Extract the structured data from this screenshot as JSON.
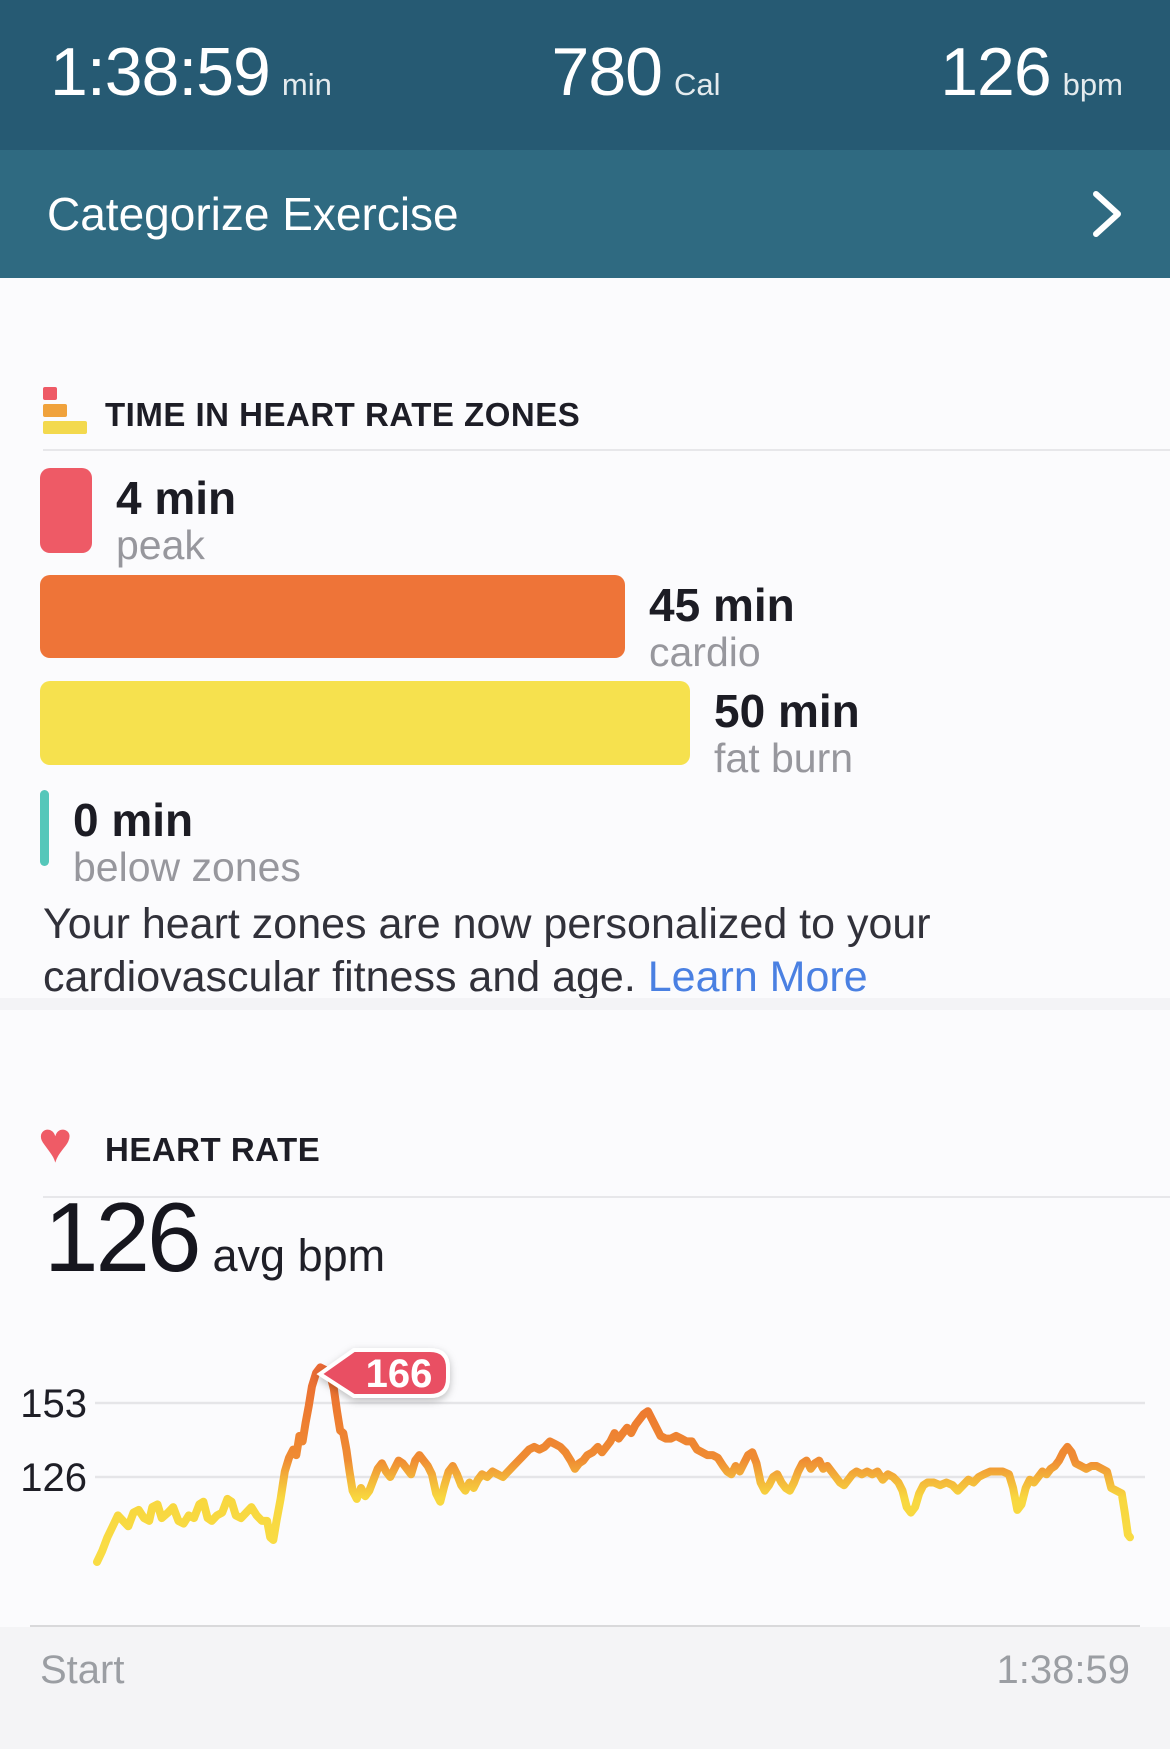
{
  "topbar": {
    "duration": "1:38:59",
    "duration_unit": "min",
    "calories": "780",
    "calories_unit": "Cal",
    "heart_rate": "126",
    "heart_rate_unit": "bpm"
  },
  "categorize": {
    "label": "Categorize Exercise"
  },
  "zones": {
    "title": "TIME IN HEART RATE ZONES",
    "rows": [
      {
        "value": "4 min",
        "label": "peak",
        "minutes": 4,
        "color": "#EE5A66"
      },
      {
        "value": "45 min",
        "label": "cardio",
        "minutes": 45,
        "color": "#EE7438"
      },
      {
        "value": "50 min",
        "label": "fat burn",
        "minutes": 50,
        "color": "#F6E14E"
      },
      {
        "value": "0 min",
        "label": "below zones",
        "minutes": 0,
        "color": "#55C7BA"
      }
    ],
    "note": "Your heart zones are now personalized to your cardiovascular fitness and age.",
    "link_label": "Learn More"
  },
  "heart_rate_section": {
    "title": "HEART RATE",
    "avg_value": "126",
    "avg_unit": "avg bpm"
  },
  "chart_data": {
    "type": "line",
    "ylabel": "bpm",
    "yticks": [
      "153",
      "126"
    ],
    "ylim": [
      90,
      170
    ],
    "duration_min": 99,
    "grid": true,
    "callout": {
      "value": "166",
      "t_min": 21.4
    },
    "colors": {
      "above_126": "#ED7C32",
      "below_126": "#F8D940",
      "callout": "#E94F63"
    },
    "x_axis_labels": [
      "Start",
      "1:38:59"
    ],
    "series": [
      {
        "name": "heart_rate_bpm",
        "points": [
          [
            0,
            95
          ],
          [
            0.5,
            99
          ],
          [
            1,
            104
          ],
          [
            1.5,
            108
          ],
          [
            2,
            112
          ],
          [
            2.5,
            110
          ],
          [
            3,
            108
          ],
          [
            3.5,
            113
          ],
          [
            4,
            114
          ],
          [
            4.5,
            111
          ],
          [
            5,
            110
          ],
          [
            5.3,
            115
          ],
          [
            5.8,
            116
          ],
          [
            6.2,
            111
          ],
          [
            6.8,
            113
          ],
          [
            7.3,
            115
          ],
          [
            7.8,
            110
          ],
          [
            8.3,
            109
          ],
          [
            8.8,
            112
          ],
          [
            9.3,
            111
          ],
          [
            9.8,
            116
          ],
          [
            10.2,
            117
          ],
          [
            10.6,
            111
          ],
          [
            11,
            110
          ],
          [
            11.5,
            112
          ],
          [
            12,
            113
          ],
          [
            12.5,
            118
          ],
          [
            12.9,
            117
          ],
          [
            13.3,
            112
          ],
          [
            13.8,
            111
          ],
          [
            14.3,
            113
          ],
          [
            14.8,
            115
          ],
          [
            15.3,
            112
          ],
          [
            15.8,
            110
          ],
          [
            16.3,
            110
          ],
          [
            16.6,
            104
          ],
          [
            16.9,
            103
          ],
          [
            17.2,
            110
          ],
          [
            17.6,
            118
          ],
          [
            18,
            128
          ],
          [
            18.4,
            133
          ],
          [
            18.8,
            136
          ],
          [
            19.1,
            134
          ],
          [
            19.4,
            141
          ],
          [
            19.7,
            139
          ],
          [
            20,
            146
          ],
          [
            20.3,
            152
          ],
          [
            20.6,
            159
          ],
          [
            21,
            164
          ],
          [
            21.4,
            166
          ],
          [
            21.9,
            165
          ],
          [
            22.3,
            164
          ],
          [
            22.7,
            158
          ],
          [
            23,
            150
          ],
          [
            23.3,
            143
          ],
          [
            23.6,
            142
          ],
          [
            23.9,
            136
          ],
          [
            24.2,
            128
          ],
          [
            24.5,
            121
          ],
          [
            24.9,
            118
          ],
          [
            25.3,
            122
          ],
          [
            25.7,
            119
          ],
          [
            26.1,
            121
          ],
          [
            26.5,
            125
          ],
          [
            26.9,
            129
          ],
          [
            27.3,
            131
          ],
          [
            27.7,
            128
          ],
          [
            28.1,
            126
          ],
          [
            28.5,
            129
          ],
          [
            28.9,
            132
          ],
          [
            29.3,
            131
          ],
          [
            29.7,
            129
          ],
          [
            30.1,
            127
          ],
          [
            30.5,
            132
          ],
          [
            30.9,
            134
          ],
          [
            31.3,
            132
          ],
          [
            31.7,
            130
          ],
          [
            32.1,
            127
          ],
          [
            32.5,
            120
          ],
          [
            32.9,
            117
          ],
          [
            33.3,
            123
          ],
          [
            33.7,
            128
          ],
          [
            34.1,
            130
          ],
          [
            34.5,
            127
          ],
          [
            34.9,
            123
          ],
          [
            35.3,
            121
          ],
          [
            35.7,
            124
          ],
          [
            36.1,
            122
          ],
          [
            36.5,
            125
          ],
          [
            36.9,
            127
          ],
          [
            37.4,
            126
          ],
          [
            37.9,
            128
          ],
          [
            38.4,
            127
          ],
          [
            38.9,
            126
          ],
          [
            39.4,
            128
          ],
          [
            39.9,
            130
          ],
          [
            40.4,
            132
          ],
          [
            40.9,
            134
          ],
          [
            41.4,
            136
          ],
          [
            41.9,
            137
          ],
          [
            42.4,
            136
          ],
          [
            42.9,
            137
          ],
          [
            43.4,
            139
          ],
          [
            43.9,
            138
          ],
          [
            44.4,
            137
          ],
          [
            44.9,
            135
          ],
          [
            45.4,
            132
          ],
          [
            45.8,
            129
          ],
          [
            46.2,
            131
          ],
          [
            46.6,
            132
          ],
          [
            47,
            134
          ],
          [
            47.5,
            135
          ],
          [
            48,
            137
          ],
          [
            48.4,
            135
          ],
          [
            48.8,
            137
          ],
          [
            49.2,
            139
          ],
          [
            49.6,
            142
          ],
          [
            50,
            140
          ],
          [
            50.4,
            142
          ],
          [
            50.8,
            144
          ],
          [
            51.2,
            142
          ],
          [
            51.6,
            145
          ],
          [
            52,
            147
          ],
          [
            52.4,
            149
          ],
          [
            52.8,
            150
          ],
          [
            53.2,
            147
          ],
          [
            53.6,
            144
          ],
          [
            54,
            141
          ],
          [
            54.5,
            140
          ],
          [
            55,
            140
          ],
          [
            55.5,
            141
          ],
          [
            56,
            140
          ],
          [
            56.5,
            139
          ],
          [
            57,
            139
          ],
          [
            57.5,
            136
          ],
          [
            58,
            135
          ],
          [
            58.5,
            134
          ],
          [
            59,
            134
          ],
          [
            59.5,
            133
          ],
          [
            60,
            130
          ],
          [
            60.4,
            128
          ],
          [
            60.8,
            127
          ],
          [
            61.2,
            130
          ],
          [
            61.6,
            128
          ],
          [
            62,
            131
          ],
          [
            62.4,
            134
          ],
          [
            62.8,
            135
          ],
          [
            63.2,
            131
          ],
          [
            63.6,
            124
          ],
          [
            64,
            121
          ],
          [
            64.4,
            123
          ],
          [
            64.8,
            126
          ],
          [
            65.2,
            127
          ],
          [
            65.6,
            124
          ],
          [
            66,
            122
          ],
          [
            66.4,
            121
          ],
          [
            66.8,
            124
          ],
          [
            67.2,
            128
          ],
          [
            67.6,
            131
          ],
          [
            68,
            132
          ],
          [
            68.4,
            129
          ],
          [
            68.8,
            131
          ],
          [
            69.2,
            132
          ],
          [
            69.6,
            129
          ],
          [
            70,
            130
          ],
          [
            70.4,
            128
          ],
          [
            70.8,
            126
          ],
          [
            71.2,
            124
          ],
          [
            71.6,
            123
          ],
          [
            72,
            125
          ],
          [
            72.4,
            127
          ],
          [
            72.8,
            128
          ],
          [
            73.3,
            127
          ],
          [
            73.8,
            128
          ],
          [
            74.3,
            127
          ],
          [
            74.8,
            128
          ],
          [
            75.3,
            125
          ],
          [
            75.8,
            127
          ],
          [
            76.3,
            126
          ],
          [
            76.8,
            124
          ],
          [
            77.2,
            121
          ],
          [
            77.6,
            115
          ],
          [
            78,
            113
          ],
          [
            78.4,
            115
          ],
          [
            78.8,
            120
          ],
          [
            79.2,
            123
          ],
          [
            79.6,
            124
          ],
          [
            80.2,
            124
          ],
          [
            80.8,
            123
          ],
          [
            81.4,
            124
          ],
          [
            82,
            123
          ],
          [
            82.5,
            121
          ],
          [
            83,
            123
          ],
          [
            83.5,
            125
          ],
          [
            84,
            124
          ],
          [
            84.5,
            126
          ],
          [
            85,
            127
          ],
          [
            85.6,
            128
          ],
          [
            86.2,
            128
          ],
          [
            86.8,
            128
          ],
          [
            87.4,
            127
          ],
          [
            87.8,
            122
          ],
          [
            88.2,
            114
          ],
          [
            88.6,
            116
          ],
          [
            89,
            122
          ],
          [
            89.4,
            125
          ],
          [
            89.8,
            124
          ],
          [
            90.2,
            126
          ],
          [
            90.6,
            128
          ],
          [
            91,
            127
          ],
          [
            91.4,
            129
          ],
          [
            91.8,
            130
          ],
          [
            92.2,
            132
          ],
          [
            92.6,
            135
          ],
          [
            93,
            137
          ],
          [
            93.4,
            135
          ],
          [
            93.8,
            131
          ],
          [
            94.3,
            130
          ],
          [
            94.8,
            129
          ],
          [
            95.3,
            130
          ],
          [
            95.8,
            130
          ],
          [
            96.3,
            129
          ],
          [
            96.8,
            128
          ],
          [
            97.2,
            122
          ],
          [
            97.7,
            121
          ],
          [
            98.2,
            120
          ],
          [
            98.5,
            113
          ],
          [
            98.8,
            105
          ],
          [
            99,
            104
          ]
        ]
      }
    ]
  }
}
